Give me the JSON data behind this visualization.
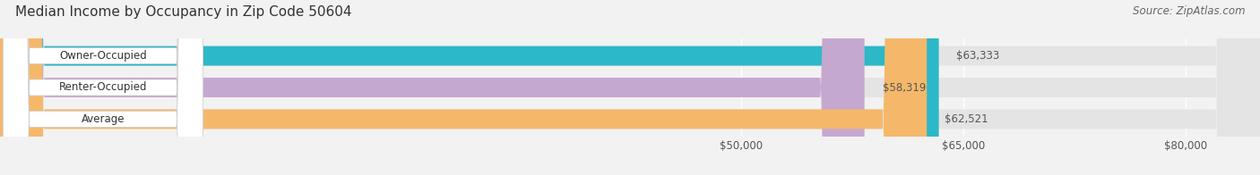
{
  "title": "Median Income by Occupancy in Zip Code 50604",
  "source": "Source: ZipAtlas.com",
  "categories": [
    "Owner-Occupied",
    "Renter-Occupied",
    "Average"
  ],
  "values": [
    63333,
    58319,
    62521
  ],
  "bar_colors": [
    "#2db8c8",
    "#c5a8d0",
    "#f5b86a"
  ],
  "value_labels": [
    "$63,333",
    "$58,319",
    "$62,521"
  ],
  "x_min": 0,
  "x_max": 85000,
  "x_ticks": [
    50000,
    65000,
    80000
  ],
  "x_tick_labels": [
    "$50,000",
    "$65,000",
    "$80,000"
  ],
  "background_color": "#f2f2f2",
  "bar_bg_color": "#e4e4e4",
  "title_fontsize": 11,
  "source_fontsize": 8.5,
  "label_fontsize": 8.5,
  "value_fontsize": 8.5,
  "tick_fontsize": 8.5
}
